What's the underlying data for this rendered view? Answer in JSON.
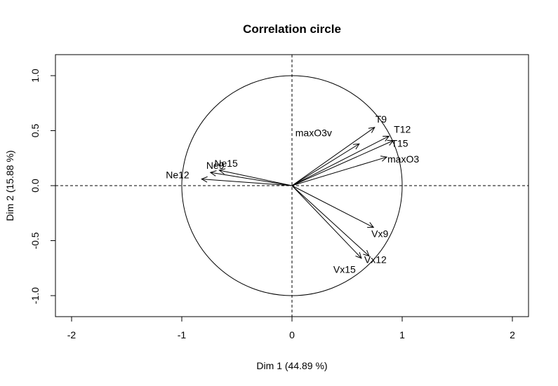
{
  "chart_data": {
    "type": "scatter",
    "title": "Correlation circle",
    "xlabel": "Dim 1 (44.89 %)",
    "ylabel": "Dim 2 (15.88 %)",
    "xlim": [
      -2.0,
      2.0
    ],
    "ylim": [
      -1.2,
      1.2
    ],
    "x_ticks": [
      -2,
      -1,
      0,
      1,
      2
    ],
    "y_ticks": [
      -1.0,
      -0.5,
      0.0,
      0.5,
      1.0
    ],
    "x_tick_labels": [
      "-2",
      "-1",
      "0",
      "1",
      "2"
    ],
    "y_tick_labels": [
      "-1.0",
      "-0.5",
      "0.0",
      "0.5",
      "1.0"
    ],
    "circle_radius": 1.0,
    "reference_lines": {
      "x": 0,
      "y": 0,
      "style": "dashed"
    },
    "grid": false,
    "variables": [
      {
        "name": "T9",
        "x": 0.75,
        "y": 0.53
      },
      {
        "name": "T12",
        "x": 0.88,
        "y": 0.45
      },
      {
        "name": "T15",
        "x": 0.92,
        "y": 0.41
      },
      {
        "name": "maxO3v",
        "x": 0.61,
        "y": 0.38
      },
      {
        "name": "maxO3",
        "x": 0.86,
        "y": 0.26
      },
      {
        "name": "Ne9",
        "x": -0.74,
        "y": 0.12
      },
      {
        "name": "Ne15",
        "x": -0.66,
        "y": 0.14
      },
      {
        "name": "Ne12",
        "x": -0.82,
        "y": 0.06
      },
      {
        "name": "Vx9",
        "x": 0.74,
        "y": -0.38
      },
      {
        "name": "Vx12",
        "x": 0.7,
        "y": -0.64
      },
      {
        "name": "Vx15",
        "x": 0.63,
        "y": -0.66
      }
    ]
  }
}
